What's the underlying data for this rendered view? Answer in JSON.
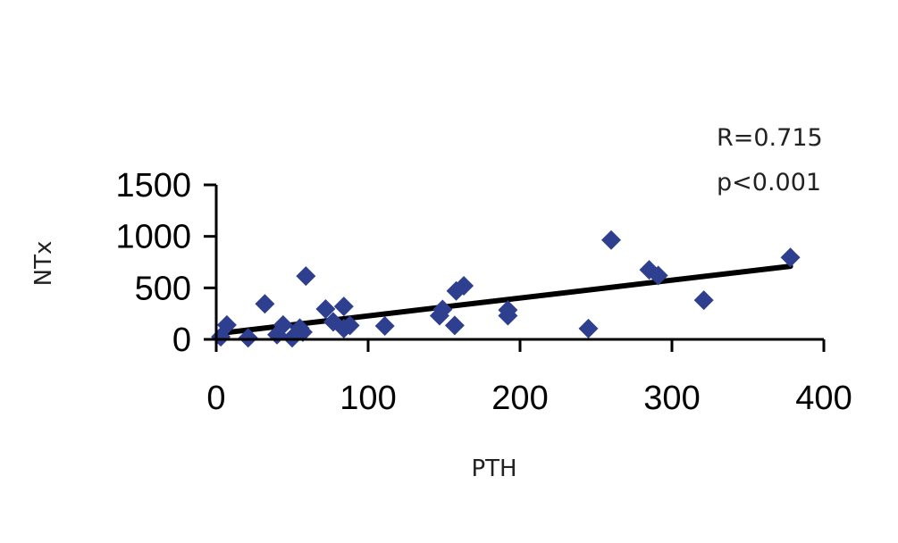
{
  "chart_data": {
    "type": "scatter",
    "title": "",
    "xlabel": "PTH",
    "ylabel": "NTx",
    "xlim": [
      0,
      400
    ],
    "ylim": [
      0,
      1500
    ],
    "x_ticks": [
      "0",
      "100",
      "200",
      "300",
      "400"
    ],
    "y_ticks": [
      "0",
      "500",
      "1000",
      "1500"
    ],
    "annotations": {
      "r": "R=0.715",
      "p": "p<0.001"
    },
    "marker_color": "#2E3F8F",
    "line_color": "#000000",
    "points": [
      [
        3,
        25
      ],
      [
        7,
        140
      ],
      [
        21,
        15
      ],
      [
        32,
        345
      ],
      [
        40,
        45
      ],
      [
        44,
        140
      ],
      [
        50,
        15
      ],
      [
        55,
        110
      ],
      [
        57,
        70
      ],
      [
        59,
        615
      ],
      [
        72,
        295
      ],
      [
        77,
        170
      ],
      [
        84,
        320
      ],
      [
        84,
        105
      ],
      [
        88,
        135
      ],
      [
        111,
        130
      ],
      [
        147,
        230
      ],
      [
        149,
        290
      ],
      [
        157,
        135
      ],
      [
        158,
        470
      ],
      [
        163,
        520
      ],
      [
        192,
        285
      ],
      [
        192,
        230
      ],
      [
        245,
        105
      ],
      [
        260,
        965
      ],
      [
        285,
        675
      ],
      [
        291,
        620
      ],
      [
        321,
        380
      ],
      [
        378,
        795
      ]
    ],
    "trendline": {
      "x": [
        3,
        378
      ],
      "y": [
        60,
        710
      ]
    }
  }
}
